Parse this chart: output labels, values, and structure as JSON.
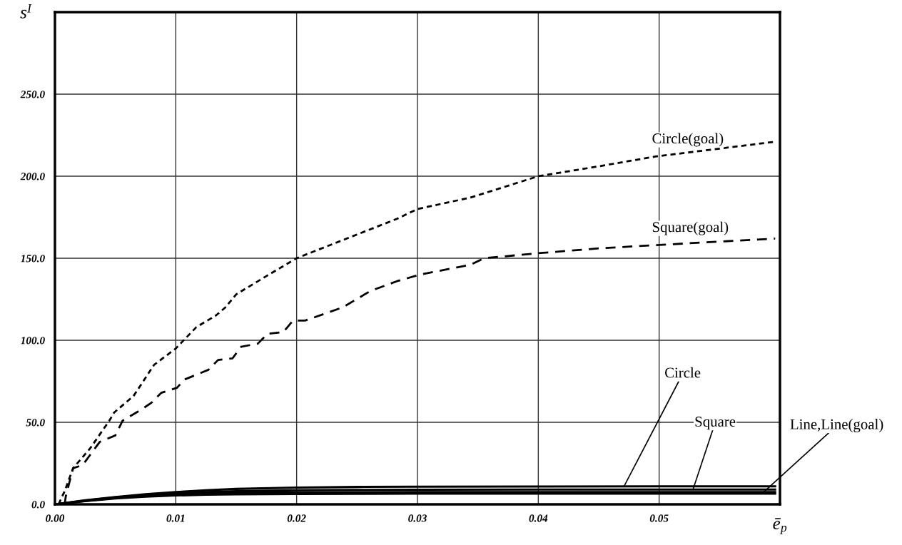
{
  "chart_data": {
    "type": "line",
    "xlabel": "ē$_{p}$",
    "ylabel": "s$^{I}$",
    "xlim": [
      0,
      0.06
    ],
    "ylim": [
      0,
      300
    ],
    "xticks": [
      {
        "value": 0,
        "label": "0.00"
      },
      {
        "value": 0.01,
        "label": "0.01"
      },
      {
        "value": 0.02,
        "label": "0.02"
      },
      {
        "value": 0.03,
        "label": "0.03"
      },
      {
        "value": 0.04,
        "label": "0.04"
      },
      {
        "value": 0.05,
        "label": "0.05"
      },
      {
        "value": 0.06,
        "label": null
      }
    ],
    "yticks": [
      {
        "value": 0,
        "label": "0.0"
      },
      {
        "value": 50,
        "label": "50.0"
      },
      {
        "value": 100,
        "label": "100.0"
      },
      {
        "value": 150,
        "label": "150.0"
      },
      {
        "value": 200,
        "label": "200.0"
      },
      {
        "value": 250,
        "label": "250.0"
      },
      {
        "value": 300,
        "label": null
      }
    ],
    "grid": true,
    "legend": false,
    "series": [
      {
        "color": "#000000",
        "line_style": "dotted",
        "x": [
          0.0003,
          0.0008,
          0.0015,
          0.0029,
          0.0045,
          0.0049,
          0.0065,
          0.0082,
          0.01,
          0.0117,
          0.0133,
          0.0141,
          0.015,
          0.0177,
          0.02,
          0.0238,
          0.0283,
          0.03,
          0.0344,
          0.04,
          0.045,
          0.0497,
          0.0596
        ],
        "values": [
          0,
          8,
          22,
          34,
          51,
          56,
          66,
          85,
          95,
          108,
          115,
          120,
          128,
          140,
          150,
          161,
          174,
          180,
          187,
          200,
          206,
          212,
          221
        ]
      },
      {
        "color": "#000000",
        "line_style": "dashed",
        "x": [
          0.0008,
          0.0009,
          0.0015,
          0.0023,
          0.0037,
          0.005,
          0.0056,
          0.0072,
          0.008,
          0.0088,
          0.0101,
          0.0107,
          0.0127,
          0.0135,
          0.0147,
          0.0154,
          0.0168,
          0.0176,
          0.0189,
          0.0197,
          0.0207,
          0.0238,
          0.0261,
          0.0283,
          0.0302,
          0.0344,
          0.0355,
          0.0399,
          0.045,
          0.0497,
          0.0596
        ],
        "values": [
          0,
          5,
          22,
          24,
          38,
          42,
          51,
          58,
          62,
          68,
          71,
          76,
          82,
          88,
          89,
          96,
          98,
          104,
          105,
          112,
          112,
          120,
          130,
          136,
          140,
          146,
          150,
          153,
          156,
          158,
          162
        ]
      },
      {
        "color": "#000000",
        "line_style": "solid",
        "x": [
          0,
          0.0025,
          0.005,
          0.0075,
          0.01,
          0.0125,
          0.015,
          0.02,
          0.025,
          0.03,
          0.04,
          0.05,
          0.0596
        ],
        "values": [
          0,
          2.5,
          4.5,
          6.2,
          7.5,
          8.6,
          9.4,
          10.2,
          10.6,
          10.8,
          10.9,
          11,
          11
        ]
      },
      {
        "color": "#000000",
        "line_style": "solid",
        "x": [
          0,
          0.0025,
          0.005,
          0.0075,
          0.01,
          0.0125,
          0.015,
          0.02,
          0.025,
          0.03,
          0.04,
          0.05,
          0.0596
        ],
        "values": [
          0,
          2.3,
          4.2,
          5.6,
          6.7,
          7.5,
          8,
          8.6,
          8.8,
          8.9,
          9,
          9,
          9
        ]
      },
      {
        "color": "#000000",
        "line_style": "solid",
        "x": [
          0,
          0.0025,
          0.005,
          0.0075,
          0.01,
          0.0125,
          0.015,
          0.02,
          0.025,
          0.03,
          0.04,
          0.05,
          0.0596
        ],
        "values": [
          0,
          2.1,
          3.9,
          5.1,
          6,
          6.6,
          7,
          7.3,
          7.4,
          7.5,
          7.5,
          7.5,
          7.5
        ]
      },
      {
        "color": "#000000",
        "line_style": "solid",
        "x": [
          0,
          0.0025,
          0.005,
          0.0075,
          0.01,
          0.0125,
          0.015,
          0.02,
          0.025,
          0.03,
          0.04,
          0.05,
          0.0596
        ],
        "values": [
          0,
          2,
          3.6,
          4.7,
          5.4,
          5.9,
          6.1,
          6.3,
          6.4,
          6.5,
          6.5,
          6.5,
          6.5
        ]
      }
    ],
    "annotations": [
      {
        "text": "Circle(goal)",
        "x": 0.0494,
        "y": 212
      },
      {
        "text": "Square(goal)",
        "x": 0.0494,
        "y": 158
      },
      {
        "text": "Circle",
        "x": 0.0471,
        "y": 11
      },
      {
        "text": "Square",
        "x": 0.0528,
        "y": 9
      },
      {
        "text": "Line,Line(goal)",
        "x": 0.0585,
        "y": 6.5
      }
    ]
  }
}
